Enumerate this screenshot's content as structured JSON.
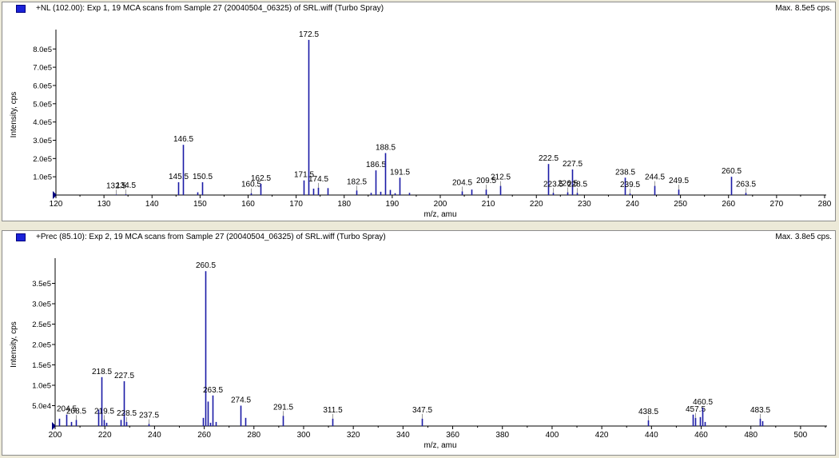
{
  "colors": {
    "peak": "#1a1aa6",
    "axis": "#000000",
    "swatch": "#1a22d8",
    "background": "#ffffff",
    "frame": "#ece9d8"
  },
  "chart_data": [
    {
      "type": "bar",
      "title": "+NL (102.00): Exp 1, 19 MCA scans from Sample 27 (20040504_06325) of SRL.wiff (Turbo Spray)",
      "max_label": "Max. 8.5e5 cps.",
      "xlabel": "m/z, amu",
      "ylabel": "Intensity, cps",
      "xlim": [
        120,
        280
      ],
      "ylim": [
        0,
        880000
      ],
      "x_ticks": [
        120,
        130,
        140,
        150,
        160,
        170,
        180,
        190,
        200,
        210,
        220,
        230,
        240,
        250,
        260,
        270,
        280
      ],
      "y_ticks": [
        {
          "value": 100000,
          "label": "1.0e5"
        },
        {
          "value": 200000,
          "label": "2.0e5"
        },
        {
          "value": 300000,
          "label": "3.0e5"
        },
        {
          "value": 400000,
          "label": "4.0e5"
        },
        {
          "value": 500000,
          "label": "5.0e5"
        },
        {
          "value": 600000,
          "label": "6.0e5"
        },
        {
          "value": 700000,
          "label": "7.0e5"
        },
        {
          "value": 800000,
          "label": "8.0e5"
        }
      ],
      "peaks": [
        {
          "mz": 132.5,
          "y": 3000,
          "label": "132.5"
        },
        {
          "mz": 134.5,
          "y": 4000,
          "label": "134.5"
        },
        {
          "mz": 145.5,
          "y": 70000,
          "label": "145.5"
        },
        {
          "mz": 146.5,
          "y": 275000,
          "label": "146.5"
        },
        {
          "mz": 149.5,
          "y": 15000
        },
        {
          "mz": 150.5,
          "y": 70000,
          "label": "150.5"
        },
        {
          "mz": 160.5,
          "y": 10000,
          "label": "160.5"
        },
        {
          "mz": 162.5,
          "y": 62000,
          "label": "162.5"
        },
        {
          "mz": 171.5,
          "y": 80000,
          "label": "171.5"
        },
        {
          "mz": 172.5,
          "y": 850000,
          "label": "172.5"
        },
        {
          "mz": 173.5,
          "y": 35000
        },
        {
          "mz": 174.5,
          "y": 40000,
          "label": "174.5"
        },
        {
          "mz": 176.5,
          "y": 38000
        },
        {
          "mz": 182.5,
          "y": 25000,
          "label": "182.5"
        },
        {
          "mz": 185.5,
          "y": 12000
        },
        {
          "mz": 186.5,
          "y": 135000,
          "label": "186.5"
        },
        {
          "mz": 187.5,
          "y": 18000
        },
        {
          "mz": 188.5,
          "y": 230000,
          "label": "188.5"
        },
        {
          "mz": 189.5,
          "y": 28000
        },
        {
          "mz": 190.5,
          "y": 10000
        },
        {
          "mz": 191.5,
          "y": 95000,
          "label": "191.5"
        },
        {
          "mz": 193.5,
          "y": 12000
        },
        {
          "mz": 204.5,
          "y": 20000,
          "label": "204.5"
        },
        {
          "mz": 206.5,
          "y": 30000
        },
        {
          "mz": 209.5,
          "y": 30000,
          "label": "209.5"
        },
        {
          "mz": 212.5,
          "y": 50000,
          "label": "212.5"
        },
        {
          "mz": 222.5,
          "y": 170000,
          "label": "222.5"
        },
        {
          "mz": 223.5,
          "y": 12000,
          "label": "223.5"
        },
        {
          "mz": 226.5,
          "y": 15000,
          "label": "226.5"
        },
        {
          "mz": 227.5,
          "y": 140000,
          "label": "227.5"
        },
        {
          "mz": 228.5,
          "y": 12000,
          "label": "228.5"
        },
        {
          "mz": 238.5,
          "y": 95000,
          "label": "238.5"
        },
        {
          "mz": 239.5,
          "y": 8000,
          "label": "239.5"
        },
        {
          "mz": 244.5,
          "y": 50000,
          "label": "244.5"
        },
        {
          "mz": 249.5,
          "y": 30000,
          "label": "249.5"
        },
        {
          "mz": 260.5,
          "y": 100000,
          "label": "260.5"
        },
        {
          "mz": 263.5,
          "y": 12000,
          "label": "263.5"
        }
      ]
    },
    {
      "type": "bar",
      "title": "+Prec (85.10): Exp 2, 19 MCA scans from Sample 27 (20040504_06325) of SRL.wiff (Turbo Spray)",
      "max_label": "Max. 3.8e5 cps.",
      "xlabel": "m/z, amu",
      "ylabel": "Intensity, cps",
      "xlim": [
        200,
        510
      ],
      "ylim": [
        0,
        400000
      ],
      "x_ticks": [
        200,
        220,
        240,
        260,
        280,
        300,
        320,
        340,
        360,
        380,
        400,
        420,
        440,
        460,
        480,
        500
      ],
      "y_ticks": [
        {
          "value": 50000,
          "label": "5.0e4"
        },
        {
          "value": 100000,
          "label": "1.0e5"
        },
        {
          "value": 150000,
          "label": "1.5e5"
        },
        {
          "value": 200000,
          "label": "2.0e5"
        },
        {
          "value": 250000,
          "label": "2.5e5"
        },
        {
          "value": 300000,
          "label": "3.0e5"
        },
        {
          "value": 350000,
          "label": "3.5e5"
        }
      ],
      "peaks": [
        {
          "mz": 201.5,
          "y": 18000
        },
        {
          "mz": 204.5,
          "y": 28000,
          "label": "204.5"
        },
        {
          "mz": 206.5,
          "y": 10000
        },
        {
          "mz": 208.5,
          "y": 15000,
          "label": "208.5"
        },
        {
          "mz": 217.5,
          "y": 40000
        },
        {
          "mz": 218.5,
          "y": 120000,
          "label": "218.5"
        },
        {
          "mz": 219.5,
          "y": 15000,
          "label": "219.5"
        },
        {
          "mz": 220.5,
          "y": 8000
        },
        {
          "mz": 226.5,
          "y": 15000
        },
        {
          "mz": 227.5,
          "y": 110000,
          "label": "227.5"
        },
        {
          "mz": 228.5,
          "y": 10000,
          "label": "228.5"
        },
        {
          "mz": 237.5,
          "y": 5000,
          "label": "237.5"
        },
        {
          "mz": 259.5,
          "y": 20000
        },
        {
          "mz": 260.5,
          "y": 380000,
          "label": "260.5"
        },
        {
          "mz": 261.5,
          "y": 60000
        },
        {
          "mz": 262.5,
          "y": 8000
        },
        {
          "mz": 263.5,
          "y": 75000,
          "label": "263.5"
        },
        {
          "mz": 264.5,
          "y": 10000
        },
        {
          "mz": 274.5,
          "y": 50000,
          "label": "274.5"
        },
        {
          "mz": 276.5,
          "y": 20000
        },
        {
          "mz": 291.5,
          "y": 25000,
          "label": "291.5"
        },
        {
          "mz": 311.5,
          "y": 18000,
          "label": "311.5"
        },
        {
          "mz": 347.5,
          "y": 18000,
          "label": "347.5"
        },
        {
          "mz": 438.5,
          "y": 14000,
          "label": "438.5"
        },
        {
          "mz": 456.5,
          "y": 28000
        },
        {
          "mz": 457.5,
          "y": 20000,
          "label": "457.5"
        },
        {
          "mz": 459.5,
          "y": 22000
        },
        {
          "mz": 460.5,
          "y": 45000,
          "label": "460.5"
        },
        {
          "mz": 461.5,
          "y": 10000
        },
        {
          "mz": 483.5,
          "y": 18000,
          "label": "483.5"
        },
        {
          "mz": 484.5,
          "y": 12000
        }
      ]
    }
  ]
}
